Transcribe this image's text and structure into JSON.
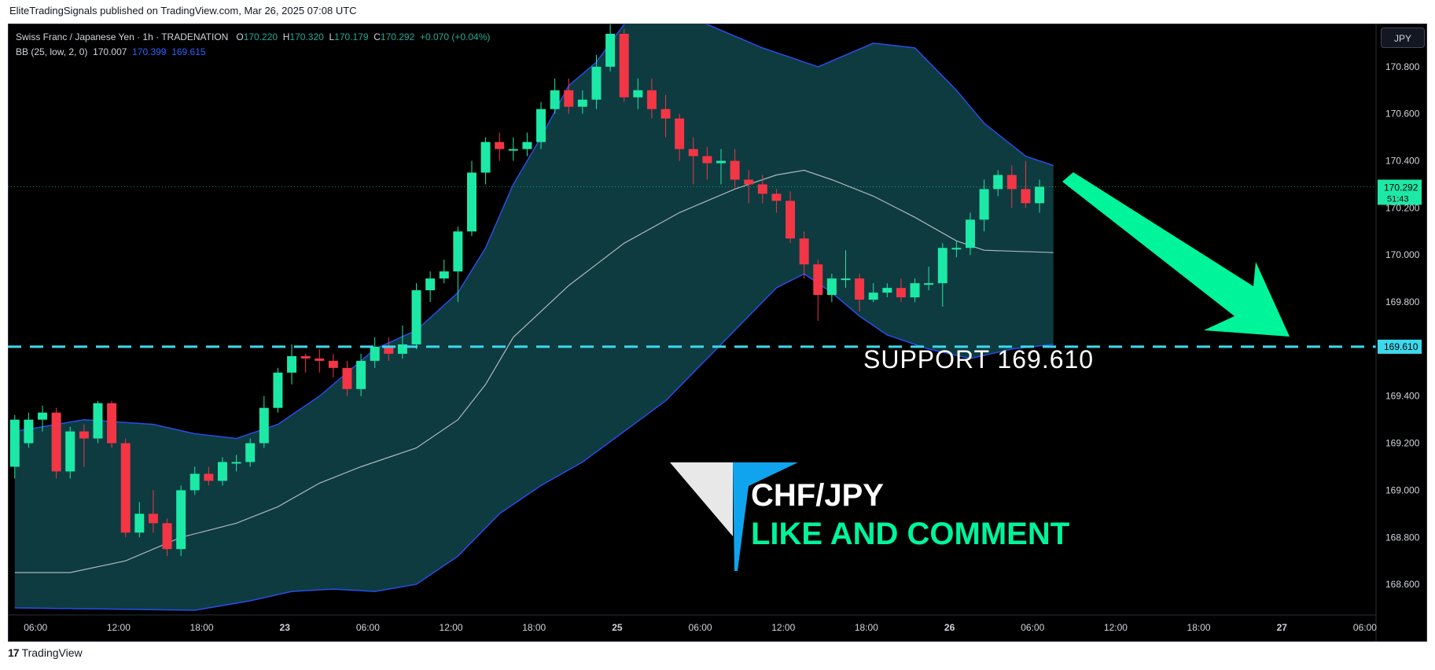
{
  "header": {
    "publisher_line": "EliteTradingSignals published on TradingView.com, Mar 26, 2025 07:08 UTC"
  },
  "legend": {
    "symbol": "Swiss Franc / Japanese Yen · 1h · TRADENATION",
    "o_label": "O",
    "o": "170.220",
    "h_label": "H",
    "h": "170.320",
    "l_label": "L",
    "l": "170.179",
    "c_label": "C",
    "c": "170.292",
    "change": "+0.070 (+0.04%)",
    "bb_label": "BB (25, low, 2, 0)",
    "bb_basis": "170.007",
    "bb_upper": "170.399",
    "bb_lower": "169.615"
  },
  "currency": "JPY",
  "footer": {
    "brand": "TradingView"
  },
  "colors": {
    "up": "#1de9a6",
    "down": "#f23645",
    "band_fill": "#0d3b40",
    "band_line": "#2a4de6",
    "basis": "#b2b5be",
    "support": "#3dd9eb",
    "arrow": "#00f59b",
    "price_tag": "#1de9a6"
  },
  "annotations": {
    "support_text": "SUPPORT   169.610",
    "pair_text": "CHF/JPY",
    "cta_text": "LIKE AND COMMENT",
    "last_price": "170.292",
    "countdown": "51:43",
    "support_price": "169.610"
  },
  "chart_data": {
    "type": "candlestick",
    "ylim": [
      168.47,
      170.98
    ],
    "y_ticks": [
      170.8,
      170.6,
      170.4,
      170.2,
      170.0,
      169.8,
      169.6,
      169.4,
      169.2,
      169.0,
      168.8,
      168.6
    ],
    "y_tick_labels": [
      "170.800",
      "170.600",
      "170.400",
      "170.200",
      "170.000",
      "169.800",
      "",
      "169.400",
      "169.200",
      "169.000",
      "168.800",
      "168.600"
    ],
    "x_labels": [
      {
        "i": 1.5,
        "label": "06:00"
      },
      {
        "i": 7.5,
        "label": "12:00"
      },
      {
        "i": 13.5,
        "label": "18:00"
      },
      {
        "i": 19.5,
        "label": "23"
      },
      {
        "i": 25.5,
        "label": "06:00"
      },
      {
        "i": 31.5,
        "label": "12:00"
      },
      {
        "i": 37.5,
        "label": "18:00"
      },
      {
        "i": 43.5,
        "label": "25"
      },
      {
        "i": 49.5,
        "label": "06:00"
      },
      {
        "i": 55.5,
        "label": "12:00"
      },
      {
        "i": 61.5,
        "label": "18:00"
      },
      {
        "i": 67.5,
        "label": "26"
      },
      {
        "i": 73.5,
        "label": "06:00"
      },
      {
        "i": 79.5,
        "label": "12:00"
      },
      {
        "i": 85.5,
        "label": "18:00"
      },
      {
        "i": 91.5,
        "label": "27"
      },
      {
        "i": 97.5,
        "label": "06:00"
      }
    ],
    "total_slots": 98.8,
    "candles": [
      [
        169.1,
        169.3,
        169.32,
        169.05
      ],
      [
        169.2,
        169.3,
        169.33,
        169.18
      ],
      [
        169.3,
        169.33,
        169.36,
        169.25
      ],
      [
        169.33,
        169.08,
        169.35,
        169.05
      ],
      [
        169.08,
        169.25,
        169.27,
        169.05
      ],
      [
        169.25,
        169.22,
        169.28,
        169.1
      ],
      [
        169.22,
        169.37,
        169.38,
        169.2
      ],
      [
        169.37,
        169.2,
        169.38,
        169.18
      ],
      [
        169.2,
        168.82,
        169.22,
        168.8
      ],
      [
        168.82,
        168.9,
        168.95,
        168.8
      ],
      [
        168.9,
        168.86,
        169.0,
        168.82
      ],
      [
        168.86,
        168.75,
        168.88,
        168.72
      ],
      [
        168.75,
        169.0,
        169.02,
        168.72
      ],
      [
        169.0,
        169.07,
        169.1,
        168.98
      ],
      [
        169.07,
        169.04,
        169.1,
        169.02
      ],
      [
        169.04,
        169.12,
        169.14,
        169.02
      ],
      [
        169.12,
        169.12,
        169.15,
        169.08
      ],
      [
        169.12,
        169.2,
        169.22,
        169.1
      ],
      [
        169.2,
        169.35,
        169.4,
        169.18
      ],
      [
        169.35,
        169.5,
        169.52,
        169.33
      ],
      [
        169.5,
        169.57,
        169.62,
        169.45
      ],
      [
        169.57,
        169.56,
        169.58,
        169.5
      ],
      [
        169.56,
        169.55,
        169.6,
        169.5
      ],
      [
        169.55,
        169.52,
        169.58,
        169.48
      ],
      [
        169.52,
        169.43,
        169.55,
        169.4
      ],
      [
        169.43,
        169.55,
        169.58,
        169.4
      ],
      [
        169.55,
        169.61,
        169.65,
        169.52
      ],
      [
        169.61,
        169.58,
        169.65,
        169.55
      ],
      [
        169.58,
        169.62,
        169.7,
        169.56
      ],
      [
        169.62,
        169.85,
        169.88,
        169.6
      ],
      [
        169.85,
        169.9,
        169.93,
        169.8
      ],
      [
        169.9,
        169.93,
        169.98,
        169.88
      ],
      [
        169.93,
        170.1,
        170.12,
        169.8
      ],
      [
        170.1,
        170.35,
        170.4,
        170.08
      ],
      [
        170.35,
        170.48,
        170.5,
        170.3
      ],
      [
        170.48,
        170.45,
        170.52,
        170.4
      ],
      [
        170.45,
        170.45,
        170.5,
        170.4
      ],
      [
        170.45,
        170.48,
        170.52,
        170.42
      ],
      [
        170.48,
        170.62,
        170.65,
        170.45
      ],
      [
        170.62,
        170.7,
        170.75,
        170.6
      ],
      [
        170.7,
        170.63,
        170.75,
        170.6
      ],
      [
        170.63,
        170.66,
        170.7,
        170.6
      ],
      [
        170.66,
        170.8,
        170.85,
        170.62
      ],
      [
        170.8,
        170.94,
        170.98,
        170.78
      ],
      [
        170.94,
        170.67,
        170.96,
        170.65
      ],
      [
        170.67,
        170.7,
        170.75,
        170.62
      ],
      [
        170.7,
        170.62,
        170.75,
        170.58
      ],
      [
        170.62,
        170.58,
        170.68,
        170.5
      ],
      [
        170.58,
        170.45,
        170.6,
        170.4
      ],
      [
        170.45,
        170.42,
        170.5,
        170.3
      ],
      [
        170.42,
        170.39,
        170.46,
        170.32
      ],
      [
        170.39,
        170.4,
        170.45,
        170.3
      ],
      [
        170.4,
        170.32,
        170.45,
        170.28
      ],
      [
        170.32,
        170.3,
        170.36,
        170.22
      ],
      [
        170.3,
        170.26,
        170.34,
        170.22
      ],
      [
        170.26,
        170.23,
        170.28,
        170.18
      ],
      [
        170.23,
        170.07,
        170.27,
        170.05
      ],
      [
        170.07,
        169.96,
        170.1,
        169.9
      ],
      [
        169.96,
        169.83,
        169.98,
        169.72
      ],
      [
        169.83,
        169.9,
        169.92,
        169.8
      ],
      [
        169.9,
        169.9,
        170.02,
        169.86
      ],
      [
        169.9,
        169.81,
        169.92,
        169.76
      ],
      [
        169.81,
        169.84,
        169.88,
        169.8
      ],
      [
        169.84,
        169.86,
        169.88,
        169.82
      ],
      [
        169.86,
        169.82,
        169.9,
        169.8
      ],
      [
        169.82,
        169.88,
        169.9,
        169.8
      ],
      [
        169.88,
        169.88,
        169.95,
        169.85
      ],
      [
        169.88,
        170.03,
        170.05,
        169.78
      ],
      [
        170.03,
        170.03,
        170.06,
        169.99
      ],
      [
        170.03,
        170.15,
        170.18,
        170.0
      ],
      [
        170.15,
        170.28,
        170.32,
        170.1
      ],
      [
        170.28,
        170.34,
        170.36,
        170.25
      ],
      [
        170.34,
        170.28,
        170.38,
        170.2
      ],
      [
        170.28,
        170.22,
        170.4,
        170.2
      ],
      [
        170.22,
        170.29,
        170.32,
        170.18
      ]
    ],
    "bollinger": {
      "upper": [
        [
          0,
          169.25
        ],
        [
          5,
          169.3
        ],
        [
          10,
          169.28
        ],
        [
          13,
          169.24
        ],
        [
          16,
          169.22
        ],
        [
          19,
          169.28
        ],
        [
          22,
          169.4
        ],
        [
          26,
          169.6
        ],
        [
          29,
          169.68
        ],
        [
          32,
          169.84
        ],
        [
          34,
          170.03
        ],
        [
          36,
          170.3
        ],
        [
          38,
          170.5
        ],
        [
          40,
          170.72
        ],
        [
          42,
          170.82
        ],
        [
          44,
          170.98
        ],
        [
          46,
          171.02
        ],
        [
          50,
          170.98
        ],
        [
          54,
          170.88
        ],
        [
          58,
          170.8
        ],
        [
          62,
          170.9
        ],
        [
          65,
          170.88
        ],
        [
          68,
          170.7
        ],
        [
          70,
          170.56
        ],
        [
          73,
          170.42
        ],
        [
          75,
          170.38
        ]
      ],
      "basis": [
        [
          0,
          168.65
        ],
        [
          4,
          168.65
        ],
        [
          8,
          168.7
        ],
        [
          12,
          168.8
        ],
        [
          16,
          168.86
        ],
        [
          19,
          168.93
        ],
        [
          22,
          169.03
        ],
        [
          25,
          169.1
        ],
        [
          29,
          169.18
        ],
        [
          32,
          169.3
        ],
        [
          34,
          169.45
        ],
        [
          36,
          169.65
        ],
        [
          40,
          169.87
        ],
        [
          44,
          170.05
        ],
        [
          48,
          170.18
        ],
        [
          52,
          170.28
        ],
        [
          55,
          170.34
        ],
        [
          57,
          170.36
        ],
        [
          59,
          170.32
        ],
        [
          62,
          170.25
        ],
        [
          65,
          170.16
        ],
        [
          68,
          170.06
        ],
        [
          70,
          170.02
        ],
        [
          75,
          170.01
        ]
      ],
      "lower": [
        [
          0,
          168.5
        ],
        [
          13,
          168.49
        ],
        [
          17,
          168.53
        ],
        [
          20,
          168.57
        ],
        [
          23,
          168.58
        ],
        [
          26,
          168.57
        ],
        [
          29,
          168.6
        ],
        [
          32,
          168.72
        ],
        [
          35,
          168.9
        ],
        [
          38,
          169.02
        ],
        [
          41,
          169.12
        ],
        [
          44,
          169.25
        ],
        [
          47,
          169.38
        ],
        [
          50,
          169.56
        ],
        [
          53,
          169.74
        ],
        [
          55,
          169.86
        ],
        [
          57,
          169.92
        ],
        [
          59,
          169.84
        ],
        [
          61,
          169.74
        ],
        [
          63,
          169.66
        ],
        [
          66,
          169.6
        ],
        [
          69,
          169.56
        ],
        [
          72,
          169.6
        ],
        [
          75,
          169.62
        ]
      ]
    },
    "support_level": 169.61
  }
}
